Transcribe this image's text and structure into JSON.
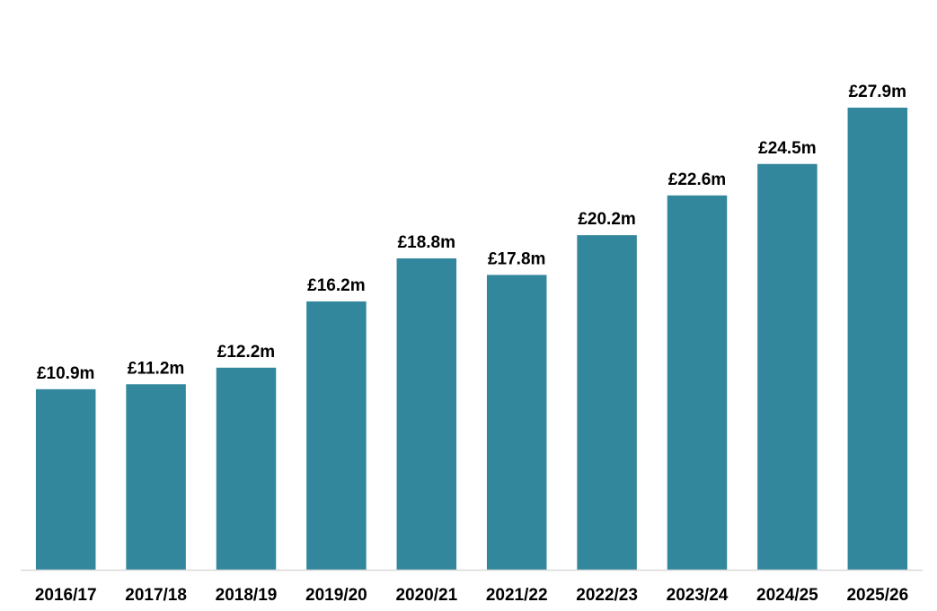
{
  "chart_data": {
    "type": "bar",
    "title": "",
    "xlabel": "",
    "ylabel": "",
    "ylim": [
      0,
      30
    ],
    "grid": false,
    "legend": "none",
    "categories": [
      "2016/17",
      "2017/18",
      "2018/19",
      "2019/20",
      "2020/21",
      "2021/22",
      "2022/23",
      "2023/24",
      "2024/25",
      "2025/26"
    ],
    "values": [
      10.9,
      11.2,
      12.2,
      16.2,
      18.8,
      17.8,
      20.2,
      22.6,
      24.5,
      27.9
    ],
    "data_labels": [
      "£10.9m",
      "£11.2m",
      "£12.2m",
      "£16.2m",
      "£18.8m",
      "£17.8m",
      "£20.2m",
      "£22.6m",
      "£24.5m",
      "£27.9m"
    ],
    "colors": {
      "bar": "#32879c",
      "axis": "#d9d9d9",
      "text": "#000000"
    }
  }
}
